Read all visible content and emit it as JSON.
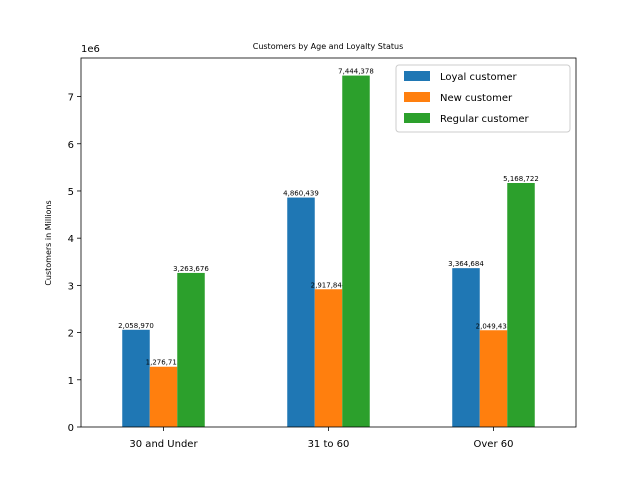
{
  "chart_data": {
    "type": "bar",
    "title": "Customers by Age and Loyalty Status",
    "xlabel": "",
    "ylabel": "Customers in Millions",
    "y_offset_label": "1e6",
    "categories": [
      "30 and Under",
      "31 to 60",
      "Over 60"
    ],
    "series": [
      {
        "name": "Loyal customer",
        "color": "#1f77b4",
        "values": [
          2058970,
          4860439,
          3364684
        ],
        "labels": [
          "2,058,970",
          "4,860,439",
          "3,364,684"
        ]
      },
      {
        "name": "New customer",
        "color": "#ff7f0e",
        "values": [
          1276713,
          2917844,
          2049433
        ],
        "labels": [
          "1,276,713",
          "2,917,844",
          "2,049,433"
        ]
      },
      {
        "name": "Regular customer",
        "color": "#2ca02c",
        "values": [
          3263676,
          7444378,
          5168722
        ],
        "labels": [
          "3,263,676",
          "7,444,378",
          "5,168,722"
        ]
      }
    ],
    "yticks": [
      "0",
      "1",
      "2",
      "3",
      "4",
      "5",
      "6",
      "7"
    ],
    "ylim": [
      0,
      7816597
    ],
    "grid": false,
    "legend_position": "top-right"
  }
}
